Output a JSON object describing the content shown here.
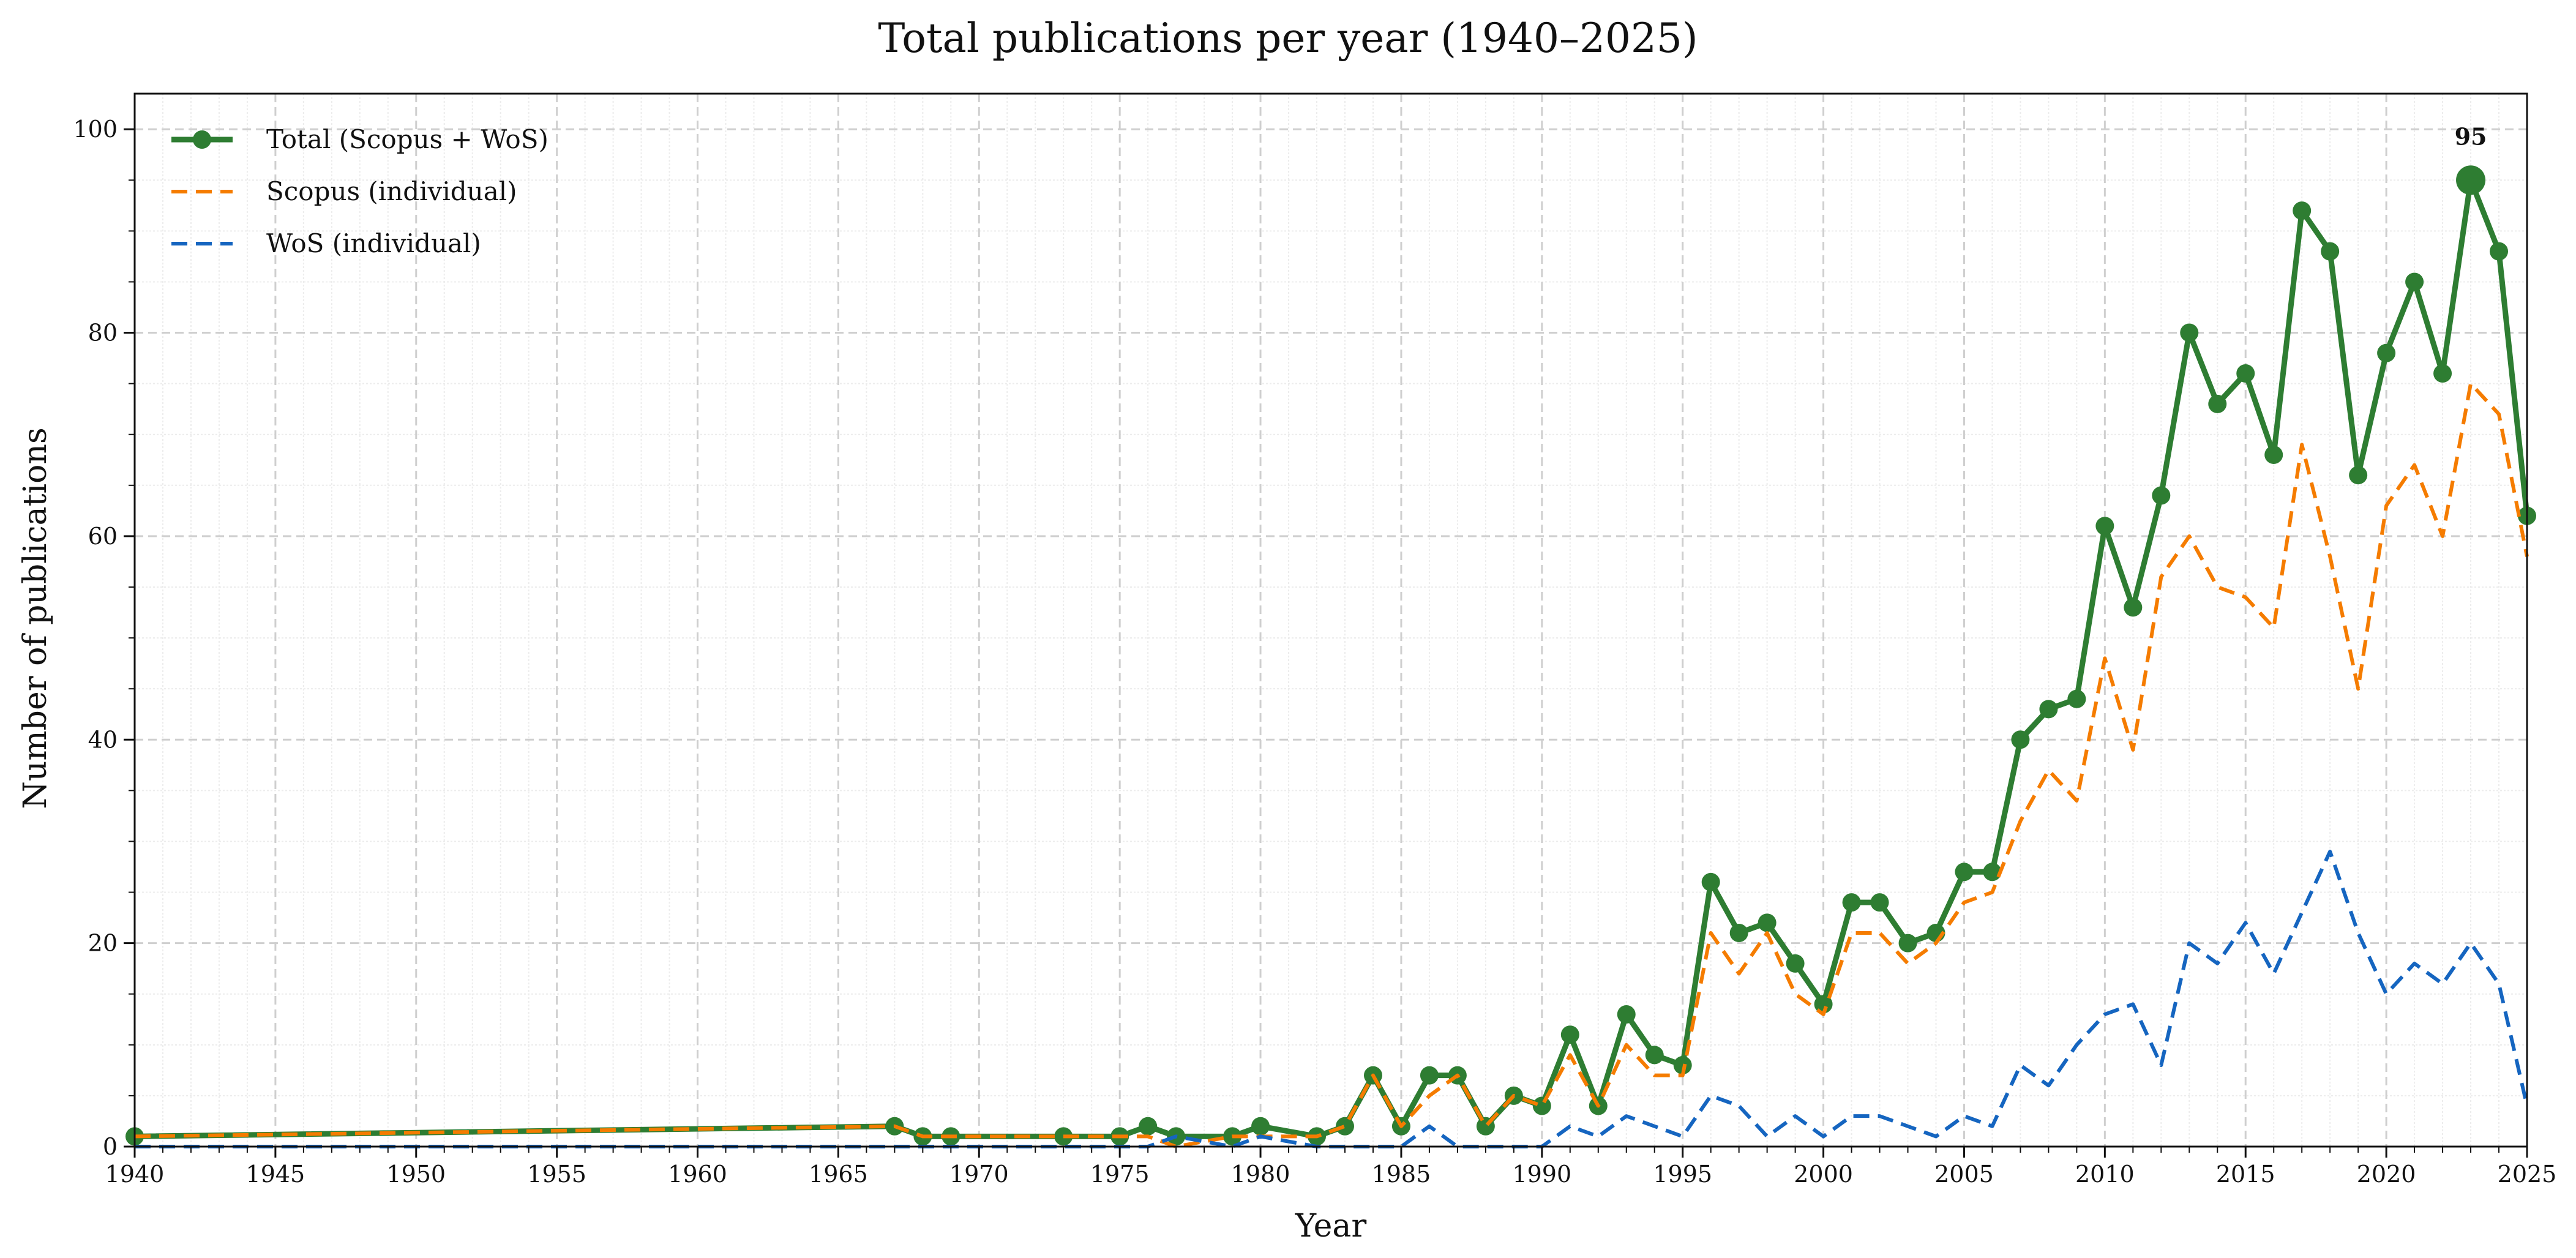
{
  "chart_data": {
    "type": "line",
    "title": "Total publications per year (1940–2025)",
    "xlabel": "Year",
    "ylabel": "Number of publications",
    "xlim": [
      1940,
      2025
    ],
    "ylim": [
      0,
      103.5
    ],
    "xticks": [
      1940,
      1945,
      1950,
      1955,
      1960,
      1965,
      1970,
      1975,
      1980,
      1985,
      1990,
      1995,
      2000,
      2005,
      2010,
      2015,
      2020,
      2025
    ],
    "yticks": [
      0,
      20,
      40,
      60,
      80,
      100
    ],
    "grid": true,
    "legend_position": "top-left",
    "series": [
      {
        "name": "Total (Scopus + WoS)",
        "color": "#2e7d32",
        "style": "solid-markers",
        "x": [
          1940,
          1967,
          1968,
          1969,
          1973,
          1975,
          1976,
          1977,
          1979,
          1980,
          1982,
          1983,
          1984,
          1985,
          1986,
          1987,
          1988,
          1989,
          1990,
          1991,
          1992,
          1993,
          1994,
          1995,
          1996,
          1997,
          1998,
          1999,
          2000,
          2001,
          2002,
          2003,
          2004,
          2005,
          2006,
          2007,
          2008,
          2009,
          2010,
          2011,
          2012,
          2013,
          2014,
          2015,
          2016,
          2017,
          2018,
          2019,
          2020,
          2021,
          2022,
          2023,
          2024,
          2025
        ],
        "y": [
          1,
          2,
          1,
          1,
          1,
          1,
          2,
          1,
          1,
          2,
          1,
          2,
          7,
          2,
          7,
          7,
          2,
          5,
          4,
          11,
          4,
          13,
          9,
          8,
          26,
          21,
          22,
          18,
          14,
          24,
          24,
          20,
          21,
          27,
          27,
          40,
          43,
          44,
          61,
          53,
          64,
          80,
          73,
          76,
          68,
          92,
          88,
          66,
          78,
          85,
          76,
          95,
          88,
          62
        ]
      },
      {
        "name": "Scopus (individual)",
        "color": "#f57c00",
        "style": "dashed",
        "x": [
          1940,
          1967,
          1968,
          1969,
          1973,
          1975,
          1976,
          1977,
          1979,
          1980,
          1982,
          1983,
          1984,
          1985,
          1986,
          1987,
          1988,
          1989,
          1990,
          1991,
          1992,
          1993,
          1994,
          1995,
          1996,
          1997,
          1998,
          1999,
          2000,
          2001,
          2002,
          2003,
          2004,
          2005,
          2006,
          2007,
          2008,
          2009,
          2010,
          2011,
          2012,
          2013,
          2014,
          2015,
          2016,
          2017,
          2018,
          2019,
          2020,
          2021,
          2022,
          2023,
          2024,
          2025
        ],
        "y": [
          1,
          2,
          1,
          1,
          1,
          1,
          1,
          0,
          1,
          1,
          1,
          2,
          7,
          2,
          5,
          7,
          2,
          5,
          4,
          9,
          4,
          10,
          7,
          7,
          21,
          17,
          21,
          15,
          13,
          21,
          21,
          18,
          20,
          24,
          25,
          32,
          37,
          34,
          48,
          39,
          56,
          60,
          55,
          54,
          51,
          69,
          58,
          45,
          63,
          67,
          60,
          75,
          72,
          58
        ]
      },
      {
        "name": "WoS (individual)",
        "color": "#1565c0",
        "style": "dashed",
        "x": [
          1940,
          1976,
          1977,
          1979,
          1980,
          1982,
          1985,
          1986,
          1987,
          1990,
          1991,
          1992,
          1993,
          1994,
          1995,
          1996,
          1997,
          1998,
          1999,
          2000,
          2001,
          2002,
          2003,
          2004,
          2005,
          2006,
          2007,
          2008,
          2009,
          2010,
          2011,
          2012,
          2013,
          2014,
          2015,
          2016,
          2017,
          2018,
          2019,
          2020,
          2021,
          2022,
          2023,
          2024,
          2025
        ],
        "y": [
          0,
          0,
          1,
          0,
          1,
          0,
          0,
          2,
          0,
          0,
          2,
          1,
          3,
          2,
          1,
          5,
          4,
          1,
          3,
          1,
          3,
          3,
          2,
          1,
          3,
          2,
          8,
          6,
          10,
          13,
          14,
          8,
          20,
          18,
          22,
          17,
          23,
          29,
          21,
          15,
          18,
          16,
          20,
          16,
          4
        ]
      }
    ],
    "annotations": [
      {
        "x": 2023,
        "y": 95,
        "text": "95"
      }
    ]
  }
}
